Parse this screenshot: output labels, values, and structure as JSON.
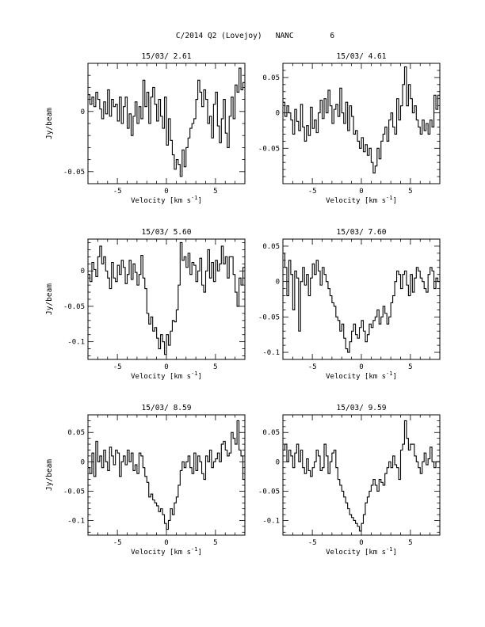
{
  "figure_title": "C/2014 Q2 (Lovejoy)   NANC        6",
  "chart_data": [
    {
      "type": "line",
      "step": true,
      "title": "15/03/ 2.61",
      "xlabel": "Velocity [km s^-1]",
      "ylabel": "Jy/beam",
      "xlim": [
        -8,
        8
      ],
      "ylim": [
        -0.06,
        0.04
      ],
      "xticks": [
        -5,
        0,
        5
      ],
      "xtick_labels": [
        "-5",
        "0",
        "5"
      ],
      "yticks": [
        -0.05,
        0
      ],
      "ytick_labels": [
        "-0.05",
        "0"
      ],
      "x_start": -7.9,
      "x_step": 0.2,
      "y": [
        0.014,
        0.006,
        0.012,
        0.004,
        0.016,
        0.01,
        0.002,
        -0.006,
        0.008,
        -0.002,
        0.018,
        -0.004,
        0.01,
        0.004,
        0.006,
        -0.008,
        0.012,
        -0.01,
        0.004,
        0.012,
        -0.014,
        -0.002,
        -0.02,
        -0.004,
        0.008,
        -0.01,
        0.004,
        -0.006,
        0.026,
        0.004,
        0.016,
        -0.01,
        0.012,
        0.02,
        0.006,
        -0.008,
        0.01,
        -0.004,
        -0.014,
        0.012,
        -0.028,
        -0.006,
        -0.024,
        -0.036,
        -0.048,
        -0.04,
        -0.044,
        -0.054,
        -0.032,
        -0.046,
        -0.03,
        -0.022,
        -0.014,
        -0.01,
        -0.006,
        0.01,
        0.026,
        0.016,
        0.004,
        0.018,
        0.01,
        -0.01,
        -0.004,
        -0.022,
        0.006,
        0.016,
        -0.012,
        -0.026,
        -0.006,
        0.01,
        -0.018,
        -0.03,
        -0.004,
        0.012,
        -0.006,
        0.022,
        0.016,
        0.036,
        0.018,
        0.024
      ]
    },
    {
      "type": "line",
      "step": true,
      "title": "15/03/ 4.61",
      "xlabel": "Velocity [km s^-1]",
      "ylabel": "",
      "xlim": [
        -8,
        8
      ],
      "ylim": [
        -0.1,
        0.07
      ],
      "xticks": [
        -5,
        0,
        5
      ],
      "xtick_labels": [
        "-5",
        "0",
        "5"
      ],
      "yticks": [
        -0.05,
        0,
        0.05
      ],
      "ytick_labels": [
        "-0.05",
        "0",
        "0.05"
      ],
      "x_start": -7.9,
      "x_step": 0.2,
      "y": [
        0.015,
        -0.005,
        0.01,
        0.0,
        -0.01,
        -0.03,
        0.005,
        -0.012,
        -0.025,
        0.012,
        -0.02,
        -0.04,
        -0.018,
        -0.032,
        0.008,
        -0.022,
        -0.01,
        -0.028,
        0.0,
        0.018,
        -0.008,
        0.02,
        0.0,
        0.032,
        0.01,
        -0.015,
        0.005,
        0.012,
        -0.005,
        0.035,
        0.0,
        -0.015,
        0.015,
        -0.025,
        0.01,
        -0.005,
        -0.03,
        -0.025,
        -0.04,
        -0.05,
        -0.035,
        -0.055,
        -0.045,
        -0.06,
        -0.05,
        -0.07,
        -0.085,
        -0.075,
        -0.05,
        -0.065,
        -0.04,
        -0.03,
        -0.02,
        -0.04,
        -0.01,
        0.0,
        -0.02,
        -0.03,
        0.02,
        -0.01,
        0.01,
        0.04,
        0.065,
        0.01,
        0.04,
        0.02,
        0.0,
        0.01,
        -0.01,
        -0.02,
        -0.03,
        -0.01,
        -0.025,
        -0.015,
        -0.03,
        -0.01,
        -0.02,
        0.025,
        0.005,
        0.025
      ]
    },
    {
      "type": "line",
      "step": true,
      "title": "15/03/ 5.60",
      "xlabel": "Velocity [km s^-1]",
      "ylabel": "Jy/beam",
      "xlim": [
        -8,
        8
      ],
      "ylim": [
        -0.125,
        0.045
      ],
      "xticks": [
        -5,
        0,
        5
      ],
      "xtick_labels": [
        "-5",
        "0",
        "5"
      ],
      "yticks": [
        -0.1,
        -0.05,
        0
      ],
      "ytick_labels": [
        "-0.1",
        "-0.05",
        "0"
      ],
      "x_start": -7.9,
      "x_step": 0.2,
      "y": [
        -0.005,
        -0.015,
        0.012,
        0.002,
        -0.008,
        0.02,
        0.035,
        0.01,
        0.02,
        0.0,
        -0.01,
        -0.025,
        0.012,
        -0.01,
        -0.015,
        0.008,
        -0.005,
        0.015,
        0.005,
        -0.018,
        -0.005,
        0.015,
        -0.012,
        0.01,
        -0.002,
        -0.02,
        -0.005,
        0.022,
        -0.01,
        -0.025,
        -0.06,
        -0.075,
        -0.065,
        -0.085,
        -0.08,
        -0.095,
        -0.11,
        -0.09,
        -0.1,
        -0.118,
        -0.09,
        -0.105,
        -0.085,
        -0.07,
        -0.072,
        -0.055,
        -0.02,
        0.04,
        0.015,
        0.02,
        0.005,
        0.025,
        -0.005,
        0.012,
        0.008,
        -0.015,
        0.0,
        0.018,
        -0.02,
        -0.03,
        0.0,
        0.03,
        -0.01,
        0.012,
        -0.015,
        0.015,
        0.0,
        0.01,
        0.035,
        0.01,
        0.02,
        -0.01,
        0.02,
        0.02,
        -0.005,
        -0.03,
        -0.05,
        -0.01,
        -0.02,
        0.005
      ]
    },
    {
      "type": "line",
      "step": true,
      "title": "15/03/ 7.60",
      "xlabel": "Velocity [km s^-1]",
      "ylabel": "",
      "xlim": [
        -8,
        8
      ],
      "ylim": [
        -0.11,
        0.06
      ],
      "xticks": [
        -5,
        0,
        5
      ],
      "xtick_labels": [
        "-5",
        "0",
        "5"
      ],
      "yticks": [
        -0.1,
        -0.05,
        0,
        0.05
      ],
      "ytick_labels": [
        "-0.1",
        "-0.05",
        "0",
        "0.05"
      ],
      "x_start": -7.9,
      "x_step": 0.2,
      "y": [
        0.04,
        0.02,
        -0.02,
        0.03,
        0.01,
        -0.04,
        0.015,
        0.005,
        -0.07,
        0.0,
        0.02,
        -0.005,
        0.01,
        -0.02,
        0.005,
        0.025,
        0.01,
        0.03,
        0.015,
        -0.005,
        0.02,
        0.01,
        0.0,
        -0.01,
        -0.02,
        -0.03,
        -0.035,
        -0.05,
        -0.055,
        -0.07,
        -0.06,
        -0.08,
        -0.095,
        -0.1,
        -0.085,
        -0.07,
        -0.06,
        -0.075,
        -0.08,
        -0.065,
        -0.055,
        -0.07,
        -0.085,
        -0.075,
        -0.06,
        -0.065,
        -0.055,
        -0.05,
        -0.04,
        -0.06,
        -0.05,
        -0.035,
        -0.045,
        -0.06,
        -0.05,
        -0.03,
        -0.02,
        0.0,
        0.015,
        0.01,
        -0.01,
        0.01,
        0.015,
        -0.005,
        -0.02,
        0.01,
        -0.015,
        0.005,
        0.02,
        0.015,
        0.005,
        0.0,
        -0.01,
        -0.015,
        0.01,
        0.02,
        0.015,
        -0.01,
        0.005,
        0.0
      ]
    },
    {
      "type": "line",
      "step": true,
      "title": "15/03/ 8.59",
      "xlabel": "Velocity [km s^-1]",
      "ylabel": "Jy/beam",
      "xlim": [
        -8,
        8
      ],
      "ylim": [
        -0.125,
        0.08
      ],
      "xticks": [
        -5,
        0,
        5
      ],
      "xtick_labels": [
        "-5",
        "0",
        "5"
      ],
      "yticks": [
        -0.1,
        -0.05,
        0,
        0.05
      ],
      "ytick_labels": [
        "-0.1",
        "-0.05",
        "0",
        "0.05"
      ],
      "x_start": -7.9,
      "x_step": 0.2,
      "y": [
        -0.01,
        -0.02,
        0.015,
        -0.025,
        0.035,
        0.0,
        0.01,
        -0.01,
        0.02,
        0.0,
        -0.015,
        0.025,
        0.01,
        -0.005,
        0.02,
        0.015,
        -0.025,
        0.0,
        0.01,
        -0.005,
        0.02,
        0.0,
        0.015,
        -0.015,
        -0.005,
        -0.02,
        0.015,
        0.01,
        -0.01,
        -0.025,
        -0.035,
        -0.06,
        -0.055,
        -0.065,
        -0.07,
        -0.075,
        -0.085,
        -0.08,
        -0.09,
        -0.105,
        -0.115,
        -0.1,
        -0.08,
        -0.09,
        -0.07,
        -0.06,
        -0.04,
        -0.015,
        0.0,
        -0.01,
        0.0,
        0.01,
        -0.01,
        -0.02,
        0.015,
        -0.015,
        0.01,
        0.0,
        -0.02,
        -0.03,
        0.01,
        0.0,
        0.02,
        -0.01,
        0.0,
        0.005,
        0.015,
        0.0,
        0.03,
        0.035,
        0.02,
        0.01,
        0.015,
        0.05,
        0.04,
        0.03,
        0.07,
        0.02,
        0.01,
        -0.03
      ]
    },
    {
      "type": "line",
      "step": true,
      "title": "15/03/ 9.59",
      "xlabel": "Velocity [km s^-1]",
      "ylabel": "",
      "xlim": [
        -8,
        8
      ],
      "ylim": [
        -0.125,
        0.08
      ],
      "xticks": [
        -5,
        0,
        5
      ],
      "xtick_labels": [
        "-5",
        "0",
        "5"
      ],
      "yticks": [
        -0.1,
        -0.05,
        0,
        0.05
      ],
      "ytick_labels": [
        "-0.1",
        "-0.05",
        "0",
        "0.05"
      ],
      "x_start": -7.9,
      "x_step": 0.2,
      "y": [
        0.02,
        0.03,
        0.0,
        0.02,
        0.01,
        -0.01,
        0.015,
        0.03,
        0.0,
        0.02,
        -0.01,
        -0.02,
        0.005,
        -0.015,
        -0.025,
        -0.01,
        0.0,
        0.02,
        0.01,
        -0.015,
        -0.01,
        0.03,
        0.01,
        -0.02,
        0.0,
        0.015,
        0.02,
        -0.01,
        -0.03,
        -0.04,
        -0.05,
        -0.06,
        -0.07,
        -0.08,
        -0.09,
        -0.095,
        -0.1,
        -0.105,
        -0.11,
        -0.118,
        -0.105,
        -0.09,
        -0.07,
        -0.06,
        -0.05,
        -0.04,
        -0.03,
        -0.04,
        -0.05,
        -0.03,
        -0.035,
        -0.04,
        -0.02,
        -0.01,
        0.0,
        -0.01,
        0.01,
        -0.005,
        -0.01,
        -0.03,
        0.02,
        0.03,
        0.07,
        0.04,
        0.02,
        0.03,
        0.03,
        0.01,
        0.0,
        -0.01,
        -0.02,
        0.0,
        0.015,
        -0.005,
        0.005,
        0.025,
        0.0,
        -0.01,
        0.0,
        0.0
      ]
    }
  ]
}
